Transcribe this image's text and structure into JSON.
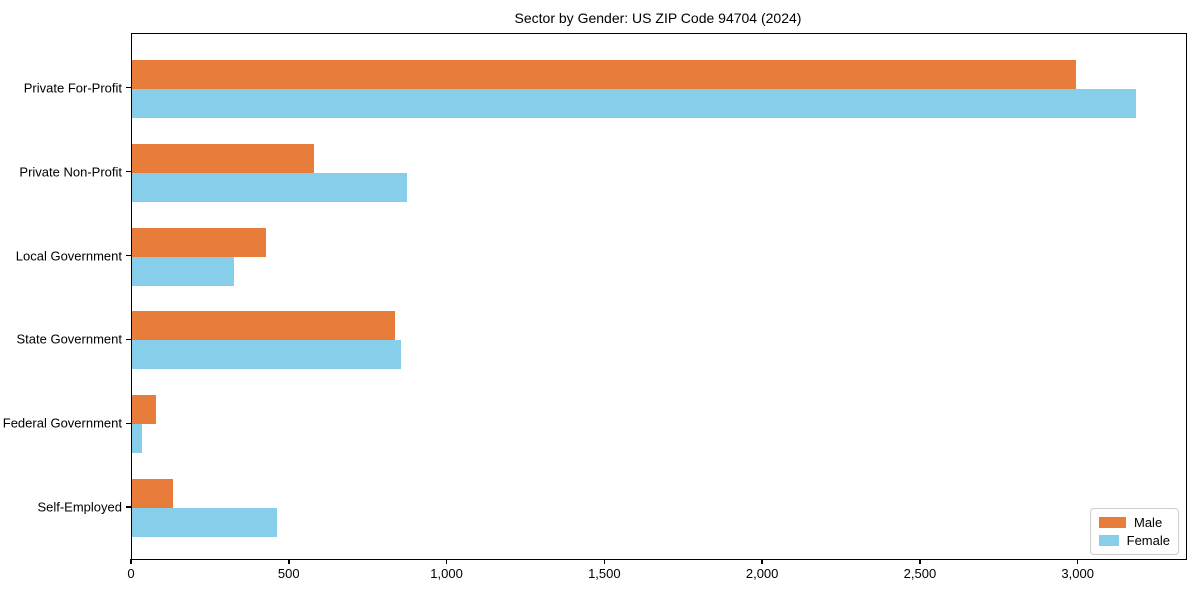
{
  "chart_data": {
    "type": "bar",
    "orientation": "horizontal",
    "title": "Sector by Gender: US ZIP Code 94704 (2024)",
    "categories": [
      "Private For-Profit",
      "Private Non-Profit",
      "Local Government",
      "State Government",
      "Federal Government",
      "Self-Employed"
    ],
    "series": [
      {
        "name": "Male",
        "color": "#e87d3b",
        "values": [
          2990,
          578,
          425,
          834,
          76,
          129
        ]
      },
      {
        "name": "Female",
        "color": "#87ceeb",
        "values": [
          3180,
          870,
          322,
          851,
          31,
          458
        ]
      }
    ],
    "xlabel": "",
    "ylabel": "",
    "xlim": [
      0,
      3340
    ],
    "xticks": [
      0,
      500,
      1000,
      1500,
      2000,
      2500,
      3000
    ],
    "xtick_labels": [
      "0",
      "500",
      "1,000",
      "1,500",
      "2,000",
      "2,500",
      "3,000"
    ],
    "legend": {
      "position": "lower right",
      "entries": [
        "Male",
        "Female"
      ]
    },
    "grid": false,
    "plot_bg": "#ffffff",
    "spine_color": "#000000"
  }
}
